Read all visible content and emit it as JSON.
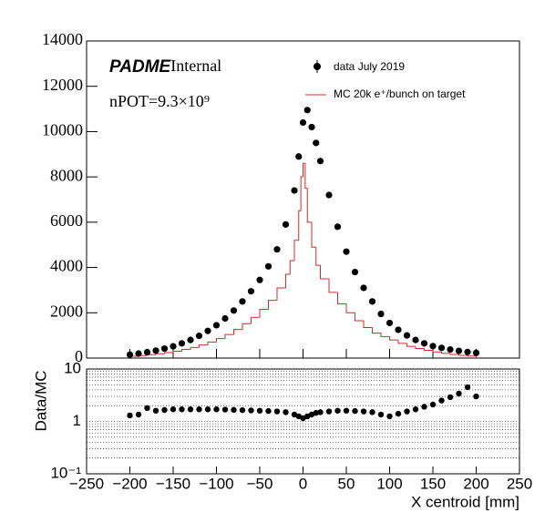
{
  "chart_data": [
    {
      "type": "scatter_hist",
      "brand": "PADME",
      "tag": "Internal",
      "note": "nPOT=9.3×10⁹",
      "series": [
        {
          "name": "data July 2019",
          "color": "#000000",
          "x": [
            -200,
            -190,
            -180,
            -170,
            -160,
            -150,
            -140,
            -130,
            -120,
            -110,
            -100,
            -90,
            -80,
            -70,
            -60,
            -50,
            -40,
            -30,
            -20,
            -10,
            -5,
            0,
            5,
            10,
            15,
            20,
            30,
            40,
            50,
            60,
            70,
            80,
            90,
            100,
            110,
            120,
            130,
            140,
            150,
            160,
            170,
            180,
            190,
            200
          ],
          "values": [
            150,
            200,
            260,
            330,
            420,
            520,
            650,
            800,
            980,
            1200,
            1450,
            1750,
            2100,
            2500,
            2950,
            3450,
            4050,
            4800,
            5900,
            7400,
            8900,
            10400,
            10950,
            10200,
            9500,
            8700,
            7200,
            5800,
            4700,
            3800,
            3100,
            2500,
            1950,
            1550,
            1250,
            1000,
            800,
            650,
            530,
            450,
            380,
            320,
            270,
            230
          ]
        },
        {
          "name": "MC 20k e⁺/bunch on target",
          "color": "#d62728",
          "bins": [
            -200,
            -190,
            -180,
            -170,
            -160,
            -150,
            -140,
            -130,
            -120,
            -110,
            -100,
            -90,
            -80,
            -70,
            -60,
            -50,
            -40,
            -30,
            -20,
            -15,
            -10,
            -5,
            -2.5,
            0,
            2.5,
            5,
            10,
            15,
            20,
            30,
            40,
            50,
            60,
            70,
            80,
            90,
            100,
            110,
            120,
            130,
            140,
            150,
            160,
            170,
            180,
            190,
            200
          ],
          "values": [
            80,
            110,
            150,
            190,
            240,
            300,
            380,
            470,
            580,
            710,
            860,
            1040,
            1260,
            1520,
            1800,
            2150,
            2550,
            3100,
            3700,
            4300,
            5200,
            6500,
            8000,
            8600,
            7500,
            6000,
            4900,
            4100,
            3500,
            2900,
            2400,
            2000,
            1650,
            1350,
            1100,
            950,
            800,
            650,
            520,
            420,
            340,
            270,
            210,
            160,
            120,
            90
          ]
        }
      ],
      "xlim": [
        -250,
        250
      ],
      "xticks": [
        {
          "value": -250,
          "label": "−250"
        },
        {
          "value": -200,
          "label": "−200"
        },
        {
          "value": -150,
          "label": "−150"
        },
        {
          "value": -100,
          "label": "−100"
        },
        {
          "value": -50,
          "label": "−50"
        },
        0,
        50,
        100,
        150,
        200,
        250
      ],
      "ylim": [
        0,
        14000
      ],
      "yticks": [
        0,
        2000,
        4000,
        6000,
        8000,
        10000,
        12000,
        14000
      ]
    },
    {
      "type": "ratio",
      "ylabel": "Data/MC",
      "xlabel": "X centroid [mm]",
      "log": true,
      "grid": true,
      "series": [
        {
          "color": "#000000",
          "x": [
            -200,
            -190,
            -180,
            -170,
            -160,
            -150,
            -140,
            -130,
            -120,
            -110,
            -100,
            -90,
            -80,
            -70,
            -60,
            -50,
            -40,
            -30,
            -20,
            -10,
            -5,
            0,
            5,
            10,
            15,
            20,
            30,
            40,
            50,
            60,
            70,
            80,
            90,
            100,
            110,
            120,
            130,
            140,
            150,
            160,
            170,
            180,
            190,
            200
          ],
          "values": [
            1.3,
            1.35,
            1.8,
            1.6,
            1.65,
            1.7,
            1.7,
            1.7,
            1.7,
            1.7,
            1.7,
            1.68,
            1.66,
            1.64,
            1.62,
            1.6,
            1.58,
            1.55,
            1.5,
            1.35,
            1.25,
            1.15,
            1.25,
            1.35,
            1.45,
            1.5,
            1.55,
            1.6,
            1.6,
            1.58,
            1.55,
            1.5,
            1.35,
            1.25,
            1.4,
            1.55,
            1.7,
            1.9,
            2.1,
            2.5,
            2.9,
            3.4,
            4.5,
            3.0
          ]
        }
      ],
      "xlim": [
        -250,
        250
      ],
      "xticks": [
        {
          "value": -250,
          "label": "−250"
        },
        {
          "value": -200,
          "label": "−200"
        },
        {
          "value": -150,
          "label": "−150"
        },
        {
          "value": -100,
          "label": "−100"
        },
        {
          "value": -50,
          "label": "−50"
        },
        0,
        50,
        100,
        150,
        200,
        250
      ],
      "ylim": [
        0.1,
        10
      ],
      "yticks": [
        {
          "value": 0.1,
          "label": "10⁻¹"
        },
        1,
        10
      ]
    }
  ]
}
